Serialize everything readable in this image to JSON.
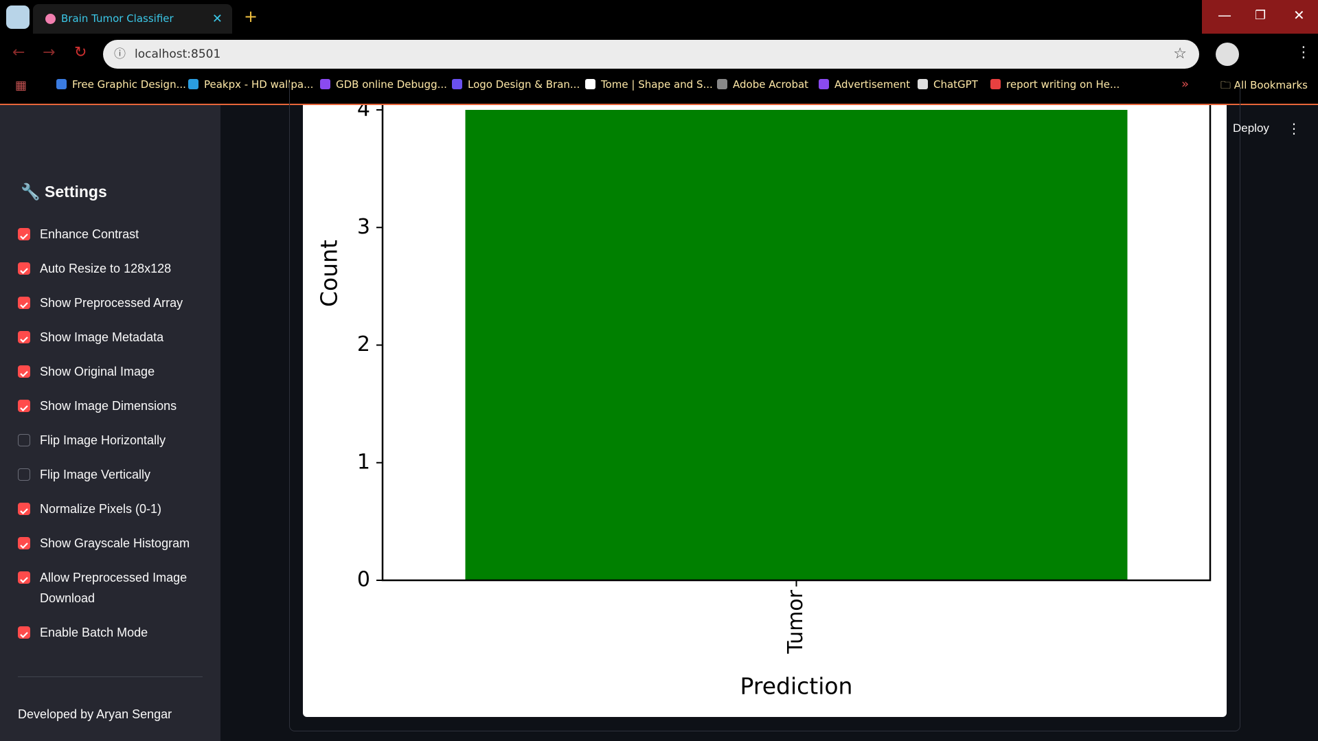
{
  "browser": {
    "tab_title": "Brain Tumor Classifier",
    "url": "localhost:8501",
    "bookmarks": [
      "Free Graphic Design...",
      "Peakpx - HD wallpa...",
      "GDB online Debugg...",
      "Logo Design & Bran...",
      "Tome | Shape and S...",
      "Adobe Acrobat",
      "Advertisement",
      "ChatGPT",
      "report writing on He..."
    ],
    "all_bookmarks": "All Bookmarks"
  },
  "app": {
    "deploy": "Deploy",
    "sidebar": {
      "heading": "Settings",
      "options": [
        {
          "label": "Enhance Contrast",
          "checked": true
        },
        {
          "label": "Auto Resize to 128x128",
          "checked": true
        },
        {
          "label": "Show Preprocessed Array",
          "checked": true
        },
        {
          "label": "Show Image Metadata",
          "checked": true
        },
        {
          "label": "Show Original Image",
          "checked": true
        },
        {
          "label": "Show Image Dimensions",
          "checked": true
        },
        {
          "label": "Flip Image Horizontally",
          "checked": false
        },
        {
          "label": "Flip Image Vertically",
          "checked": false
        },
        {
          "label": "Normalize Pixels (0-1)",
          "checked": true
        },
        {
          "label": "Show Grayscale Histogram",
          "checked": true
        },
        {
          "label": "Allow Preprocessed Image Download",
          "checked": true
        },
        {
          "label": "Enable Batch Mode",
          "checked": true
        }
      ],
      "footer": "Developed by Aryan Sengar"
    }
  },
  "chart_data": {
    "type": "bar",
    "categories": [
      "Tumor"
    ],
    "values": [
      4
    ],
    "color": "#008000",
    "xlabel": "Prediction",
    "ylabel": "Count",
    "ylim": [
      0,
      4.2
    ],
    "yticks": [
      0,
      1,
      2,
      3,
      4
    ]
  }
}
